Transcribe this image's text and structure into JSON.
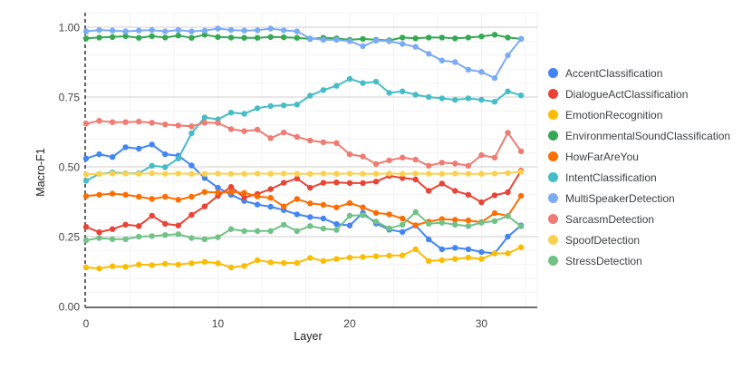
{
  "chart_data": {
    "type": "line",
    "title": "",
    "xlabel": "Layer",
    "ylabel": "Macro-F1",
    "x": [
      0,
      1,
      2,
      3,
      4,
      5,
      6,
      7,
      8,
      9,
      10,
      11,
      12,
      13,
      14,
      15,
      16,
      17,
      18,
      19,
      20,
      21,
      22,
      23,
      24,
      25,
      26,
      27,
      28,
      29,
      30,
      31,
      32,
      33
    ],
    "xlim": [
      0,
      34.3
    ],
    "ylim": [
      0,
      1.05
    ],
    "x_ticks": [
      0,
      10,
      20,
      30
    ],
    "y_major_ticks": [
      0,
      0.25,
      0.5,
      0.75,
      1
    ],
    "y_tick_labels": [
      "0.00",
      "0.25",
      "0.50",
      "0.75",
      "1.00"
    ],
    "y_minor_step": 0.05,
    "grid": true,
    "legend_position": "right",
    "marker": "circle",
    "series": [
      {
        "name": "AccentClassification",
        "color": "#4285F4",
        "values": [
          0.53,
          0.545,
          0.535,
          0.57,
          0.565,
          0.58,
          0.545,
          0.54,
          0.505,
          0.46,
          0.425,
          0.4,
          0.378,
          0.365,
          0.357,
          0.345,
          0.33,
          0.32,
          0.315,
          0.295,
          0.29,
          0.335,
          0.297,
          0.275,
          0.267,
          0.29,
          0.24,
          0.205,
          0.21,
          0.205,
          0.195,
          0.19,
          0.25,
          0.29
        ]
      },
      {
        "name": "DialogueActClassification",
        "color": "#EA4335",
        "values": [
          0.285,
          0.266,
          0.277,
          0.293,
          0.288,
          0.325,
          0.296,
          0.29,
          0.328,
          0.358,
          0.396,
          0.428,
          0.39,
          0.403,
          0.42,
          0.443,
          0.458,
          0.425,
          0.443,
          0.444,
          0.442,
          0.442,
          0.447,
          0.468,
          0.46,
          0.455,
          0.414,
          0.44,
          0.414,
          0.4,
          0.373,
          0.398,
          0.409,
          0.486
        ]
      },
      {
        "name": "EmotionRecognition",
        "color": "#FBBC04",
        "values": [
          0.14,
          0.136,
          0.144,
          0.142,
          0.15,
          0.148,
          0.153,
          0.15,
          0.155,
          0.16,
          0.155,
          0.14,
          0.145,
          0.166,
          0.158,
          0.156,
          0.156,
          0.174,
          0.163,
          0.17,
          0.175,
          0.177,
          0.18,
          0.182,
          0.183,
          0.205,
          0.163,
          0.166,
          0.17,
          0.175,
          0.17,
          0.19,
          0.19,
          0.212
        ]
      },
      {
        "name": "EnvironmentalSoundClassification",
        "color": "#34A853",
        "values": [
          0.96,
          0.963,
          0.965,
          0.968,
          0.962,
          0.968,
          0.963,
          0.97,
          0.962,
          0.973,
          0.965,
          0.963,
          0.962,
          0.962,
          0.965,
          0.964,
          0.962,
          0.958,
          0.962,
          0.96,
          0.955,
          0.958,
          0.955,
          0.953,
          0.963,
          0.96,
          0.963,
          0.963,
          0.96,
          0.963,
          0.967,
          0.973,
          0.963,
          0.958
        ]
      },
      {
        "name": "HowFarAreYou",
        "color": "#FF6D01",
        "values": [
          0.395,
          0.4,
          0.404,
          0.4,
          0.393,
          0.385,
          0.393,
          0.382,
          0.393,
          0.41,
          0.408,
          0.41,
          0.407,
          0.394,
          0.389,
          0.358,
          0.385,
          0.369,
          0.364,
          0.355,
          0.37,
          0.355,
          0.335,
          0.33,
          0.315,
          0.291,
          0.304,
          0.313,
          0.31,
          0.308,
          0.302,
          0.334,
          0.324,
          0.396
        ]
      },
      {
        "name": "IntentClassification",
        "color": "#46BDC6",
        "values": [
          0.45,
          0.475,
          0.48,
          0.477,
          0.477,
          0.504,
          0.499,
          0.53,
          0.62,
          0.677,
          0.67,
          0.694,
          0.69,
          0.71,
          0.718,
          0.72,
          0.723,
          0.755,
          0.775,
          0.79,
          0.815,
          0.8,
          0.805,
          0.765,
          0.77,
          0.758,
          0.75,
          0.745,
          0.74,
          0.745,
          0.74,
          0.733,
          0.77,
          0.756
        ]
      },
      {
        "name": "MultiSpeakerDetection",
        "color": "#7BAAF7",
        "values": [
          0.985,
          0.99,
          0.988,
          0.985,
          0.988,
          0.99,
          0.985,
          0.99,
          0.985,
          0.988,
          0.995,
          0.99,
          0.988,
          0.989,
          0.995,
          0.989,
          0.985,
          0.96,
          0.955,
          0.955,
          0.95,
          0.932,
          0.952,
          0.95,
          0.94,
          0.93,
          0.905,
          0.881,
          0.875,
          0.848,
          0.84,
          0.818,
          0.899,
          0.958
        ]
      },
      {
        "name": "SarcasmDetection",
        "color": "#F07B72",
        "values": [
          0.655,
          0.665,
          0.66,
          0.66,
          0.662,
          0.658,
          0.652,
          0.648,
          0.645,
          0.658,
          0.657,
          0.635,
          0.628,
          0.633,
          0.603,
          0.623,
          0.607,
          0.594,
          0.588,
          0.585,
          0.545,
          0.537,
          0.51,
          0.523,
          0.533,
          0.526,
          0.504,
          0.515,
          0.512,
          0.504,
          0.542,
          0.533,
          0.622,
          0.556
        ]
      },
      {
        "name": "SpoofDetection",
        "color": "#FCD04F",
        "values": [
          0.473,
          0.475,
          0.476,
          0.476,
          0.475,
          0.477,
          0.475,
          0.476,
          0.475,
          0.475,
          0.476,
          0.475,
          0.475,
          0.476,
          0.475,
          0.476,
          0.475,
          0.475,
          0.476,
          0.475,
          0.476,
          0.475,
          0.475,
          0.476,
          0.475,
          0.476,
          0.475,
          0.475,
          0.476,
          0.475,
          0.475,
          0.476,
          0.478,
          0.482
        ]
      },
      {
        "name": "StressDetection",
        "color": "#71C287",
        "values": [
          0.237,
          0.245,
          0.241,
          0.241,
          0.25,
          0.252,
          0.256,
          0.259,
          0.245,
          0.241,
          0.248,
          0.277,
          0.27,
          0.27,
          0.27,
          0.293,
          0.27,
          0.288,
          0.279,
          0.274,
          0.325,
          0.327,
          0.304,
          0.28,
          0.293,
          0.338,
          0.296,
          0.3,
          0.293,
          0.288,
          0.3,
          0.306,
          0.324,
          0.287
        ]
      }
    ]
  }
}
